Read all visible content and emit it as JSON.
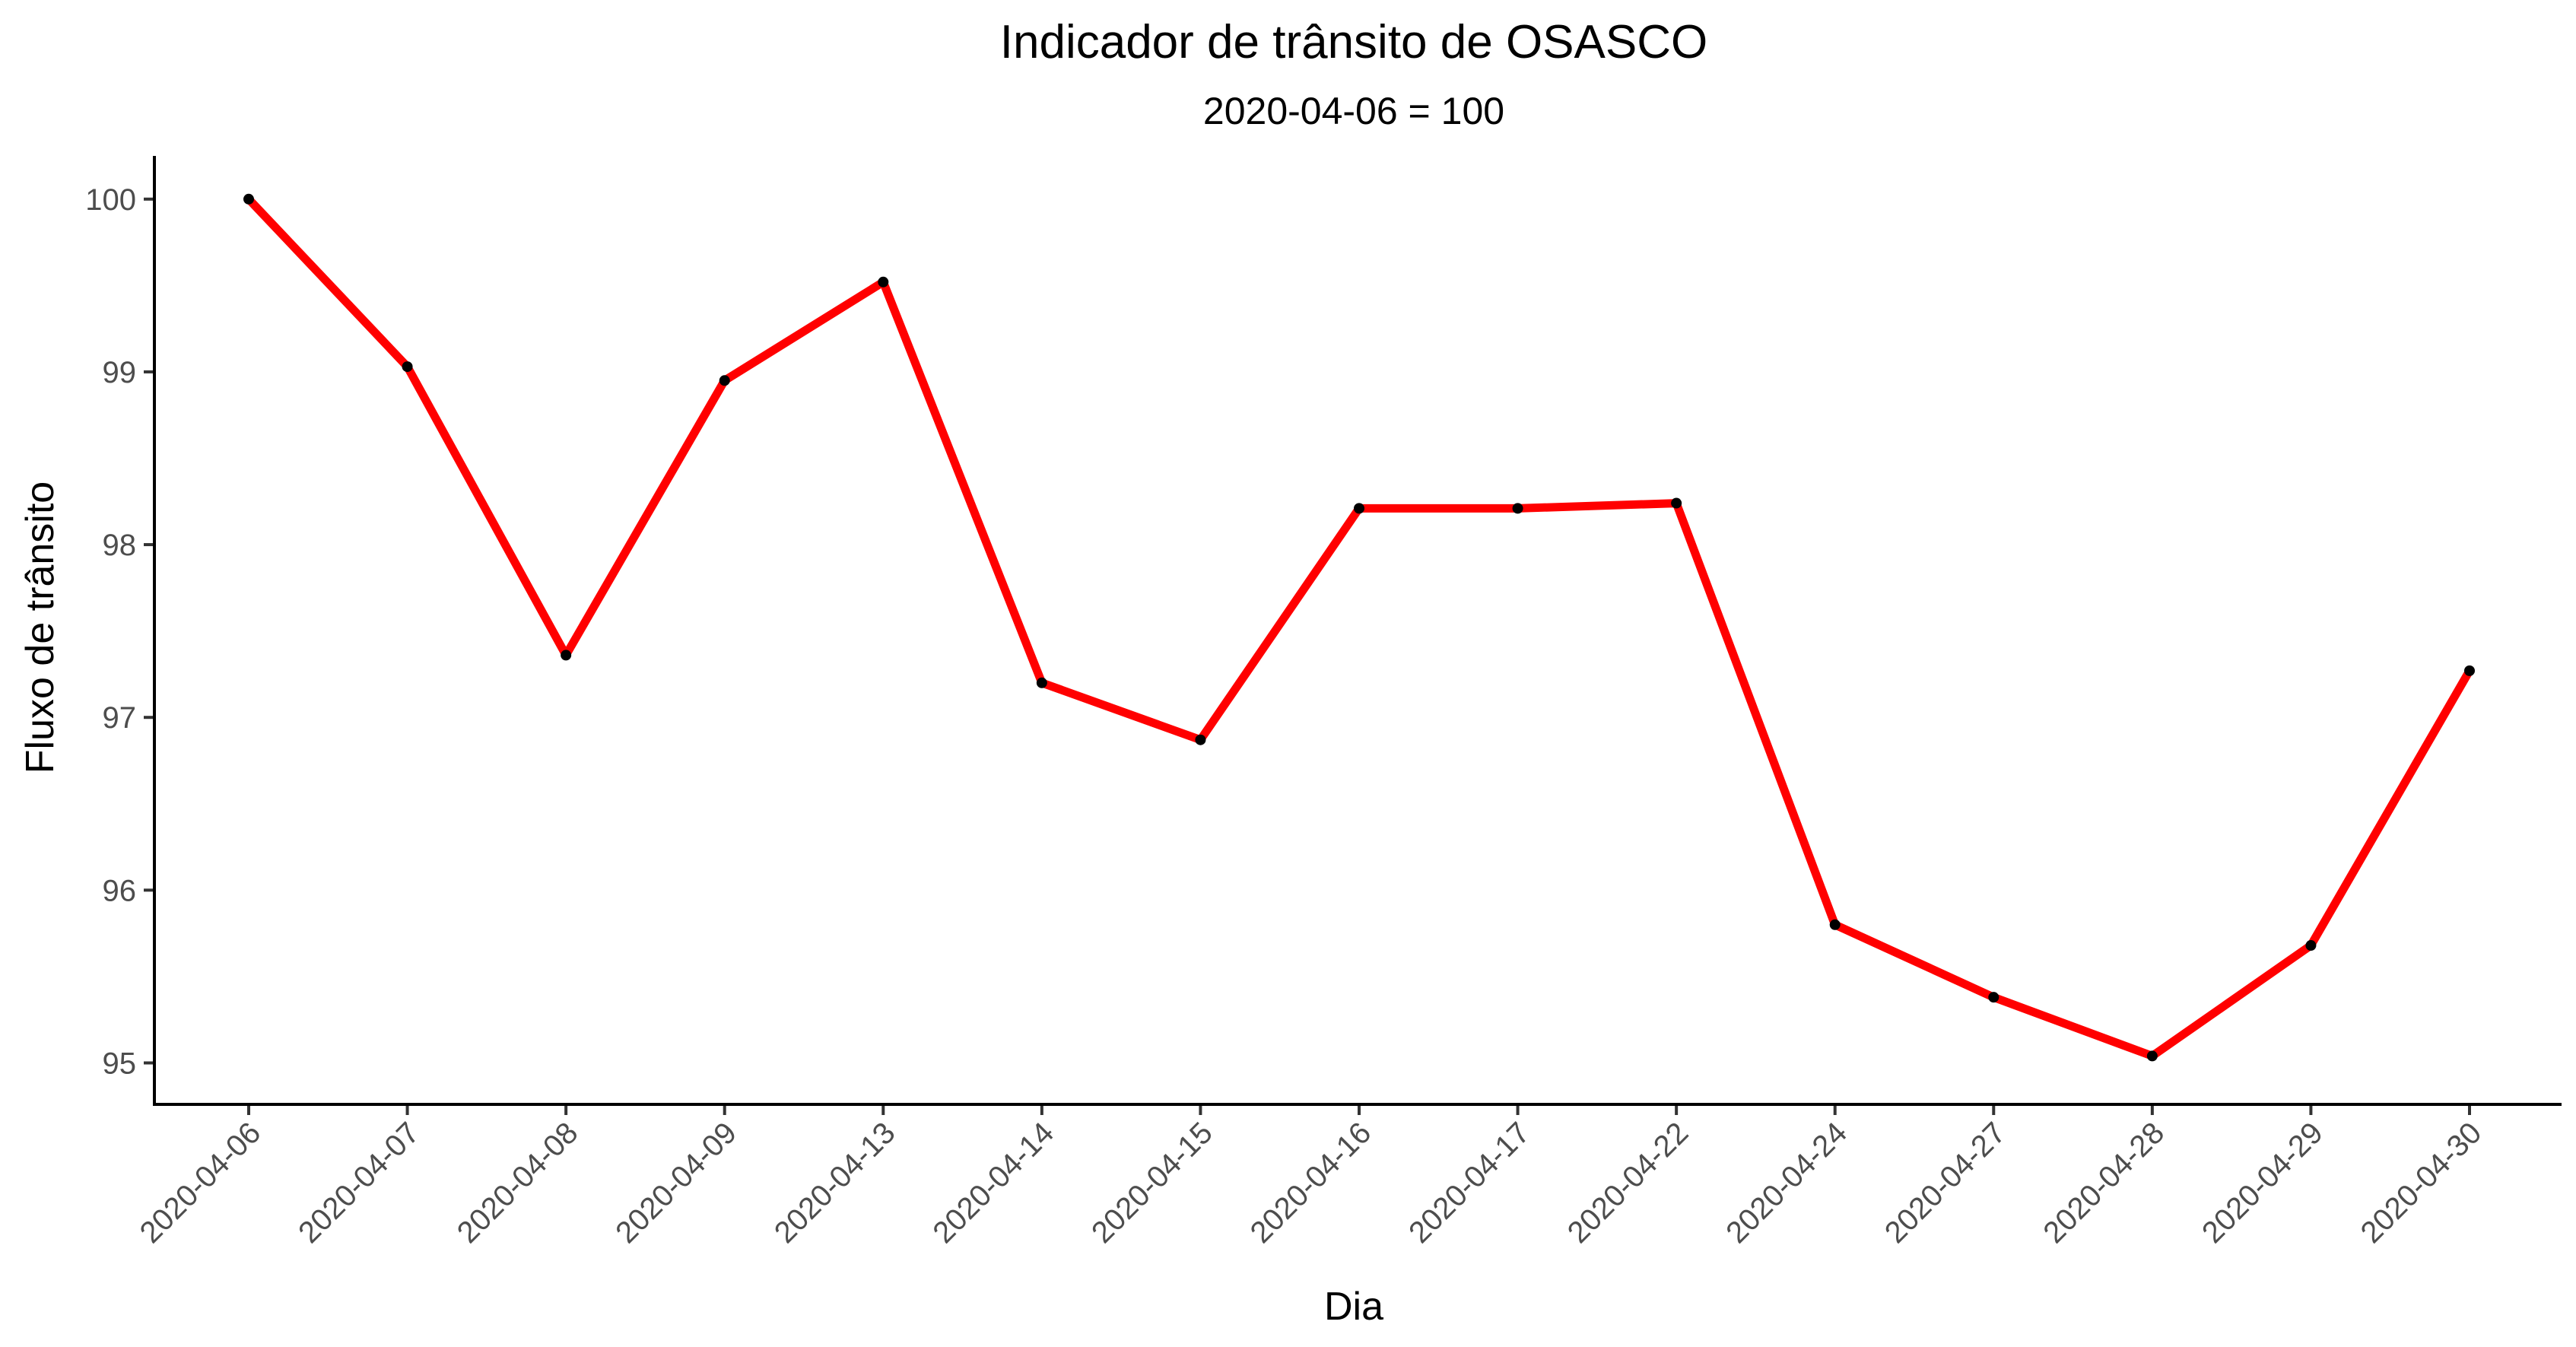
{
  "chart_data": {
    "type": "line",
    "title": "Indicador de trânsito de OSASCO",
    "subtitle": "2020-04-06 = 100",
    "xlabel": "Dia",
    "ylabel": "Fluxo de trânsito",
    "categories": [
      "2020-04-06",
      "2020-04-07",
      "2020-04-08",
      "2020-04-09",
      "2020-04-13",
      "2020-04-14",
      "2020-04-15",
      "2020-04-16",
      "2020-04-17",
      "2020-04-22",
      "2020-04-24",
      "2020-04-27",
      "2020-04-28",
      "2020-04-29",
      "2020-04-30"
    ],
    "values": [
      100.0,
      99.03,
      97.36,
      98.95,
      99.52,
      97.2,
      96.87,
      98.21,
      98.21,
      98.24,
      95.8,
      95.38,
      95.04,
      95.68,
      97.27
    ],
    "ylim": [
      94.76,
      100.25
    ],
    "yticks": [
      95,
      96,
      97,
      98,
      99,
      100
    ],
    "grid": false,
    "legend": "none",
    "line_color": "#ff0000",
    "point_color": "#000000"
  }
}
